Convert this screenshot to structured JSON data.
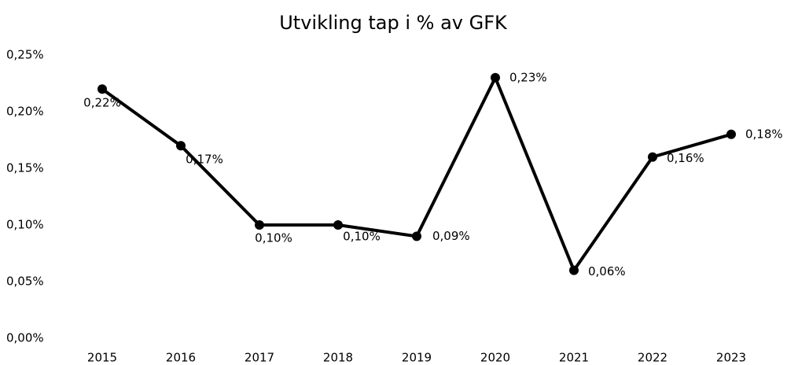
{
  "chart_data": {
    "type": "line",
    "title": "Utvikling tap i % av GFK",
    "categories": [
      "2015",
      "2016",
      "2017",
      "2018",
      "2019",
      "2020",
      "2021",
      "2022",
      "2023"
    ],
    "series": [
      {
        "name": "Tap i % av GFK",
        "color": "#000000",
        "values": [
          0.22,
          0.17,
          0.1,
          0.1,
          0.09,
          0.23,
          0.06,
          0.16,
          0.18
        ],
        "value_labels": [
          "0,22%",
          "0,17%",
          "0,10%",
          "0,10%",
          "0,09%",
          "0,23%",
          "0,06%",
          "0,16%",
          "0,18%"
        ]
      }
    ],
    "ylim": [
      0,
      0.25
    ],
    "yticks": [
      {
        "value": 0,
        "label": "0,00%"
      },
      {
        "value": 0.05,
        "label": "0,05%"
      },
      {
        "value": 0.1,
        "label": "0,10%"
      },
      {
        "value": 0.15,
        "label": "0,15%"
      },
      {
        "value": 0.2,
        "label": "0,20%"
      },
      {
        "value": 0.25,
        "label": "0,25%"
      }
    ],
    "grid": false
  }
}
